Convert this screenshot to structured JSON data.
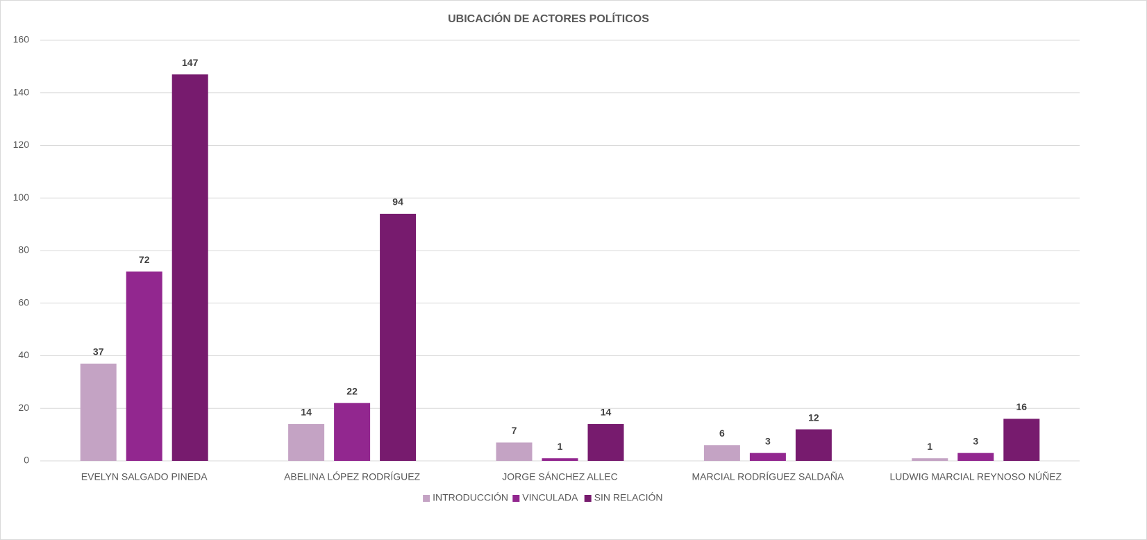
{
  "chart_data": {
    "type": "bar",
    "title": "UBICACIÓN DE ACTORES POLÍTICOS",
    "categories": [
      "EVELYN SALGADO PINEDA",
      "ABELINA LÓPEZ RODRÍGUEZ",
      "JORGE SÁNCHEZ ALLEC",
      "MARCIAL RODRÍGUEZ SALDAÑA",
      "LUDWIG MARCIAL REYNOSO NÚÑEZ"
    ],
    "series": [
      {
        "name": "INTRODUCCIÓN",
        "color": "#c4a3c4",
        "values": [
          37,
          14,
          7,
          6,
          1
        ]
      },
      {
        "name": "VINCULADA",
        "color": "#92278f",
        "values": [
          72,
          22,
          1,
          3,
          3
        ]
      },
      {
        "name": "SIN RELACIÓN",
        "color": "#771b6e",
        "values": [
          147,
          94,
          14,
          12,
          16
        ]
      }
    ],
    "ylim": [
      0,
      160
    ],
    "yticks": [
      0,
      20,
      40,
      60,
      80,
      100,
      120,
      140,
      160
    ],
    "grid": true,
    "legend": "bottom"
  }
}
